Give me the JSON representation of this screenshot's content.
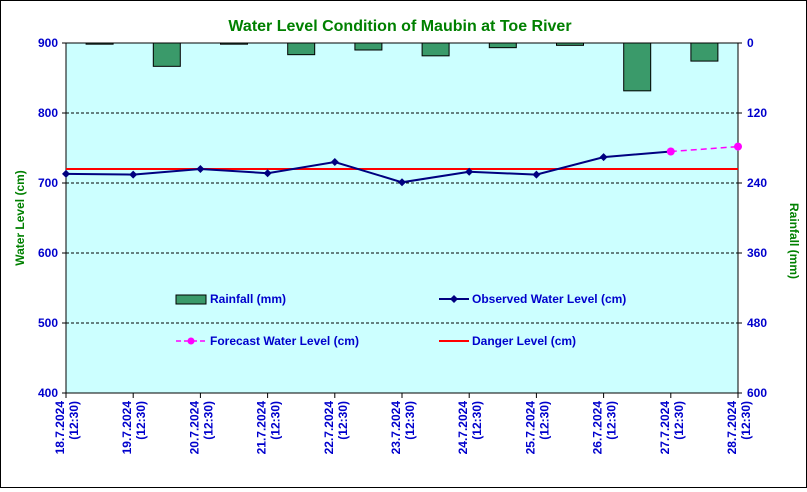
{
  "chart_data": {
    "type": "combo",
    "title": "Water Level Condition of  Maubin at Toe River",
    "ylabel_left": "Water Level (cm)",
    "ylabel_right": "Rainfall (mm)",
    "ylim_left": [
      400,
      900
    ],
    "yticks_left": [
      "400",
      "500",
      "600",
      "700",
      "800",
      "900"
    ],
    "ylim_right": [
      0,
      600
    ],
    "yticks_right": [
      "0",
      "120",
      "240",
      "360",
      "480",
      "600"
    ],
    "right_axis_inverted": true,
    "categories": [
      "18.7.2024 (12:30)",
      "19.7.2024 (12:30)",
      "20.7.2024 (12:30)",
      "21.7.2024 (12:30)",
      "22.7.2024 (12:30)",
      "23.7.2024 (12:30)",
      "24.7.2024 (12:30)",
      "25.7.2024 (12:30)",
      "26.7.2024 (12:30)",
      "27.7.2024 (12:30)",
      "28.7.2024 (12:30)"
    ],
    "series": [
      {
        "name": "Rainfall (mm)",
        "kind": "bar",
        "axis": "right",
        "color": "#3a9a6a",
        "values": [
          2,
          40,
          2,
          20,
          12,
          22,
          8,
          4,
          82,
          31,
          null
        ]
      },
      {
        "name": "Observed Water Level (cm)",
        "kind": "line",
        "axis": "left",
        "color": "#000080",
        "values": [
          713,
          712,
          720,
          714,
          730,
          701,
          716,
          712,
          737,
          745,
          null
        ]
      },
      {
        "name": "Forecast Water Level (cm)",
        "kind": "dashed-line",
        "axis": "left",
        "color": "#ff00ff",
        "values": [
          null,
          null,
          null,
          null,
          null,
          null,
          null,
          null,
          null,
          745,
          752
        ]
      },
      {
        "name": "Danger Level (cm)",
        "kind": "hline",
        "axis": "left",
        "color": "#ff0000",
        "value": 720
      }
    ],
    "grid": "horizontal dashed",
    "legend_position": "inside-bottom",
    "plot_background": "#ccffff"
  }
}
